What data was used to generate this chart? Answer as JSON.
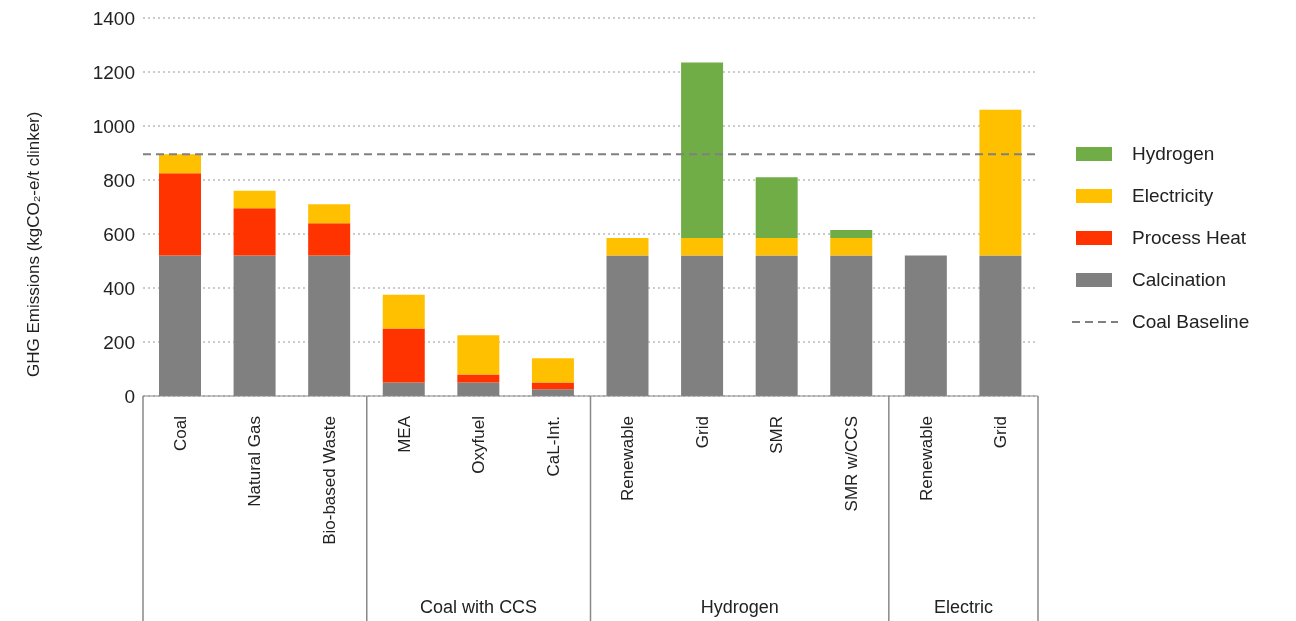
{
  "chart_data": {
    "type": "bar",
    "stacked": true,
    "ylabel": "GHG Emissions (kgCO₂-e/t clinker)",
    "categories": [
      "Coal",
      "Natural Gas",
      "Bio-based Waste",
      "MEA",
      "Oxyfuel",
      "CaL-Int.",
      "Renewable",
      "Grid",
      "SMR",
      "SMR w/CCS",
      "Renewable",
      "Grid"
    ],
    "annotations": [
      "Coal with CCS",
      "Hydrogen",
      "Electric"
    ],
    "series": [
      {
        "name": "Calcination",
        "color": "#808080",
        "values": [
          520,
          520,
          520,
          50,
          50,
          25,
          520,
          520,
          520,
          520,
          520,
          520
        ]
      },
      {
        "name": "Process Heat",
        "color": "#ff3300",
        "values": [
          305,
          175,
          120,
          200,
          30,
          25,
          null,
          null,
          null,
          null,
          null,
          null
        ]
      },
      {
        "name": "Electricity",
        "color": "#ffc000",
        "values": [
          70,
          65,
          70,
          125,
          145,
          90,
          65,
          65,
          65,
          65,
          null,
          540
        ]
      },
      {
        "name": "Hydrogen",
        "color": "#70ad47",
        "values": [
          null,
          null,
          null,
          null,
          null,
          null,
          null,
          650,
          225,
          30,
          null,
          null
        ]
      }
    ],
    "ref_lines": [
      {
        "axis": "y",
        "value": 895,
        "label": "Coal Baseline",
        "color": "#808080",
        "line_style": "dashed"
      }
    ],
    "ylim": [
      0,
      1400
    ],
    "yticks": [
      0,
      200,
      400,
      600,
      800,
      1000,
      1200,
      1400
    ],
    "grid": "y",
    "legend": "right"
  }
}
